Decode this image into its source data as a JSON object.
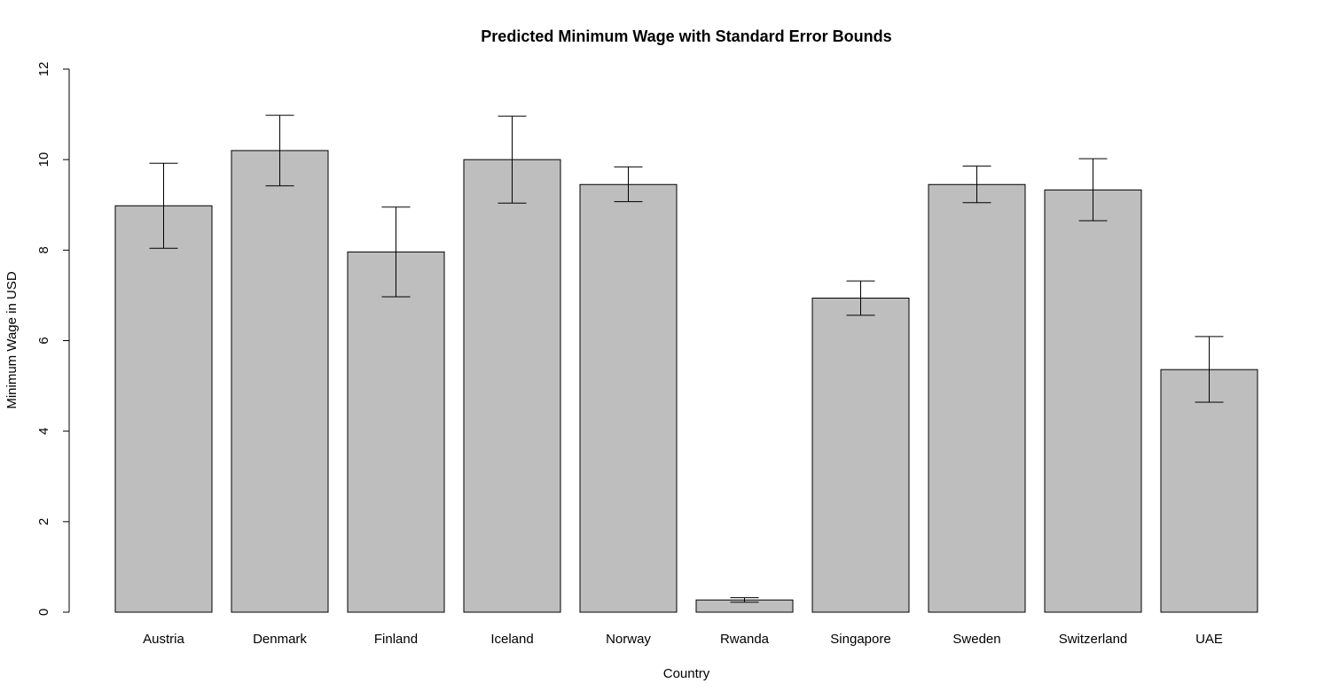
{
  "chart_data": {
    "type": "bar",
    "title": "Predicted Minimum Wage with Standard Error Bounds",
    "xlabel": "Country",
    "ylabel": "Minimum Wage in USD",
    "categories": [
      "Austria",
      "Denmark",
      "Finland",
      "Iceland",
      "Norway",
      "Rwanda",
      "Singapore",
      "Sweden",
      "Switzerland",
      "UAE"
    ],
    "values": [
      8.98,
      10.2,
      7.96,
      10.0,
      9.45,
      0.27,
      6.94,
      9.45,
      9.33,
      5.36
    ],
    "lower": [
      8.04,
      9.42,
      6.97,
      9.04,
      9.07,
      0.22,
      6.56,
      9.05,
      8.65,
      4.64
    ],
    "upper": [
      9.92,
      10.98,
      8.95,
      10.96,
      9.84,
      0.32,
      7.32,
      9.86,
      10.02,
      6.09
    ],
    "ylim": [
      0,
      12
    ],
    "yticks": [
      "0",
      "2",
      "4",
      "6",
      "8",
      "10",
      "12"
    ],
    "grid": false,
    "bar_color": "#bebebe"
  }
}
